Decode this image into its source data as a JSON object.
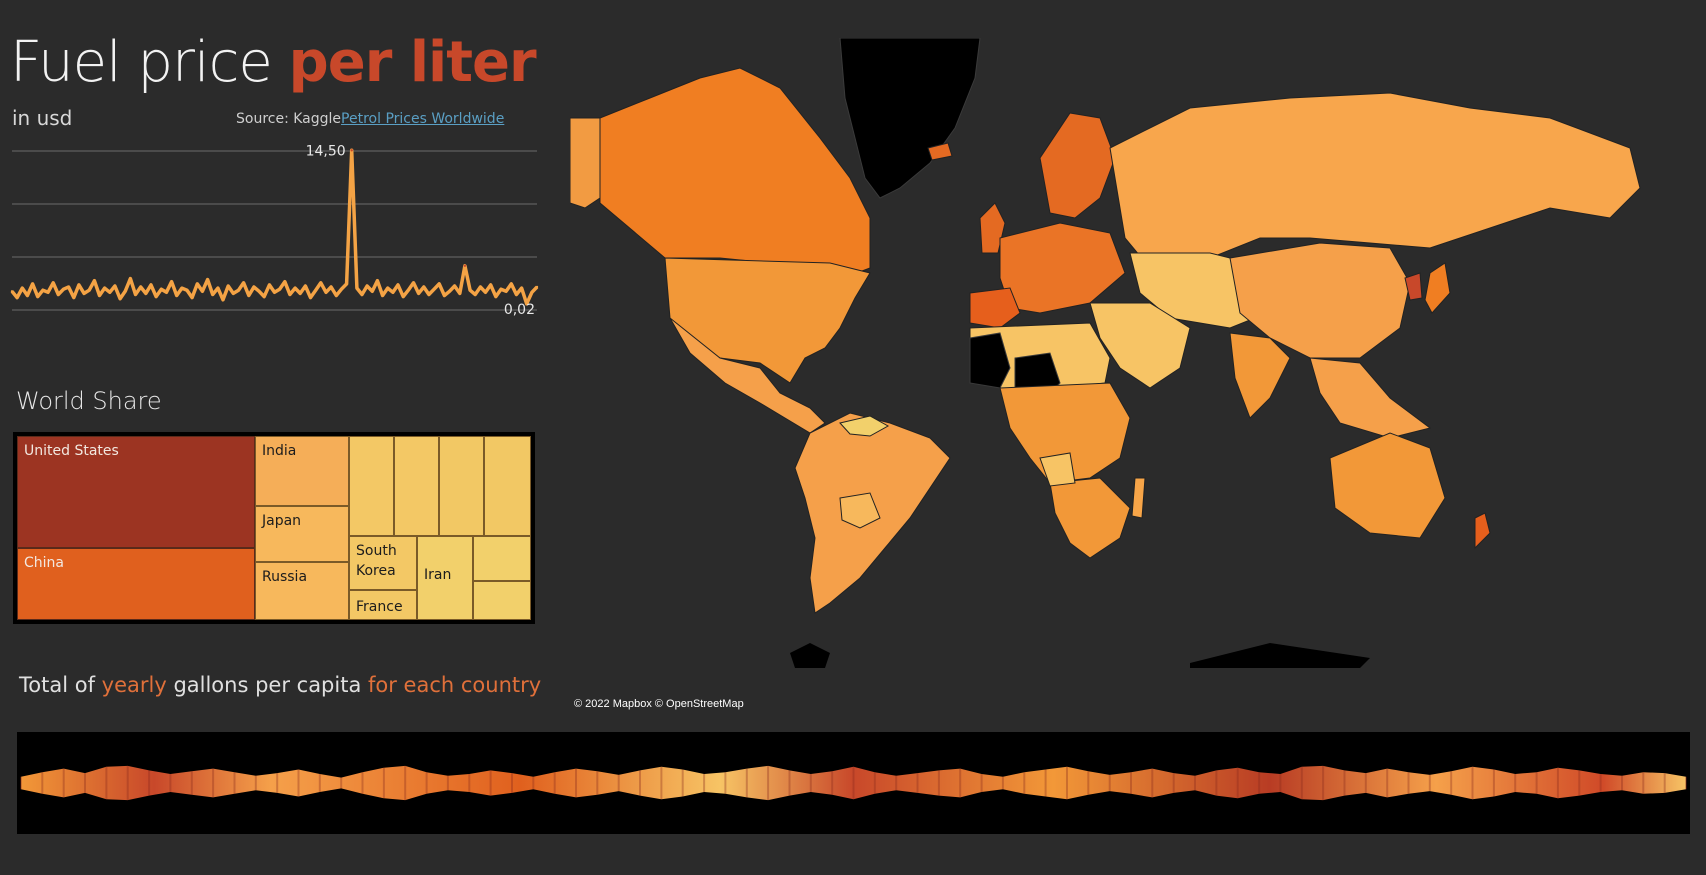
{
  "header": {
    "title_main": "Fuel price",
    "title_highlight": "per liter",
    "subtitle": "in usd",
    "source_prefix": "Source: Kaggle",
    "source_link": "Petrol Prices Worldwide"
  },
  "colors": {
    "background": "#2b2b2b",
    "accent": "#c8482a",
    "link": "#5a9fc4",
    "low": "#f2d06b",
    "mid": "#f5a04a",
    "high": "#e06a20",
    "highest": "#9c3422"
  },
  "chart_data": [
    {
      "type": "line",
      "title": "",
      "ylim": [
        0,
        15
      ],
      "grid": true,
      "annotations": [
        {
          "label": "14,50",
          "kind": "max",
          "index": 66
        },
        {
          "label": "0,02",
          "kind": "min",
          "index": 100
        }
      ],
      "series": [
        {
          "values": [
            1.2,
            0.6,
            1.5,
            0.8,
            1.9,
            0.7,
            1.3,
            1.1,
            2.0,
            0.9,
            1.4,
            1.6,
            0.6,
            1.8,
            1.0,
            1.3,
            2.2,
            0.8,
            1.5,
            1.1,
            1.7,
            0.5,
            1.2,
            2.4,
            0.9,
            1.6,
            1.0,
            1.8,
            0.7,
            1.4,
            1.1,
            2.1,
            0.8,
            1.5,
            1.3,
            0.6,
            1.9,
            1.2,
            2.3,
            0.9,
            1.5,
            0.4,
            1.7,
            1.0,
            1.3,
            2.0,
            0.8,
            1.6,
            1.2,
            0.7,
            1.8,
            1.1,
            1.4,
            2.1,
            0.9,
            1.5,
            1.0,
            1.7,
            0.6,
            1.3,
            2.0,
            1.1,
            1.6,
            0.8,
            1.4,
            1.9,
            14.5,
            1.5,
            0.9,
            1.7,
            1.2,
            2.2,
            0.8,
            1.5,
            1.1,
            1.8,
            0.7,
            1.3,
            2.0,
            1.0,
            1.6,
            0.9,
            1.4,
            1.9,
            0.8,
            1.2,
            1.7,
            1.0,
            3.6,
            1.3,
            0.9,
            1.6,
            1.1,
            1.8,
            0.7,
            1.4,
            1.2,
            1.9,
            0.9,
            1.5,
            0.02,
            1.1,
            1.6
          ]
        }
      ]
    },
    {
      "type": "treemap",
      "title": "World Share",
      "items": [
        {
          "label": "United States",
          "color": "#9c3422"
        },
        {
          "label": "China",
          "color": "#e0601e"
        },
        {
          "label": "India",
          "color": "#f5ae58"
        },
        {
          "label": "Japan",
          "color": "#f7b85c"
        },
        {
          "label": "Russia",
          "color": "#f7b85c"
        },
        {
          "label": "South Korea",
          "color": "#f3c865"
        },
        {
          "label": "France",
          "color": "#f3c865"
        },
        {
          "label": "Iran",
          "color": "#f2d06b"
        },
        {
          "label": "",
          "color": "#f3c865"
        },
        {
          "label": "",
          "color": "#f3c865"
        },
        {
          "label": "",
          "color": "#f2c864"
        },
        {
          "label": "",
          "color": "#f2c864"
        },
        {
          "label": "",
          "color": "#f2d06b"
        },
        {
          "label": "",
          "color": "#f2d06b"
        }
      ]
    },
    {
      "type": "map",
      "title": "",
      "attribution": "© 2022 Mapbox © OpenStreetMap",
      "legend": "none"
    },
    {
      "type": "area",
      "title_parts": [
        "Total of ",
        "yearly",
        " gallons per capita ",
        "for each country"
      ],
      "values": [
        0.35,
        0.6,
        0.8,
        0.55,
        0.9,
        0.95,
        0.7,
        0.5,
        0.65,
        0.8,
        0.6,
        0.4,
        0.55,
        0.75,
        0.5,
        0.3,
        0.6,
        0.85,
        0.95,
        0.6,
        0.4,
        0.5,
        0.7,
        0.55,
        0.35,
        0.6,
        0.8,
        0.65,
        0.45,
        0.7,
        0.9,
        0.75,
        0.5,
        0.6,
        0.8,
        0.95,
        0.7,
        0.5,
        0.65,
        0.9,
        0.6,
        0.4,
        0.55,
        0.7,
        0.8,
        0.5,
        0.35,
        0.6,
        0.75,
        0.9,
        0.65,
        0.45,
        0.6,
        0.8,
        0.55,
        0.4,
        0.7,
        0.85,
        0.6,
        0.5,
        0.9,
        0.95,
        0.7,
        0.55,
        0.8,
        0.6,
        0.45,
        0.65,
        0.9,
        0.75,
        0.5,
        0.6,
        0.85,
        0.7,
        0.5,
        0.4,
        0.6,
        0.55,
        0.35
      ]
    }
  ]
}
